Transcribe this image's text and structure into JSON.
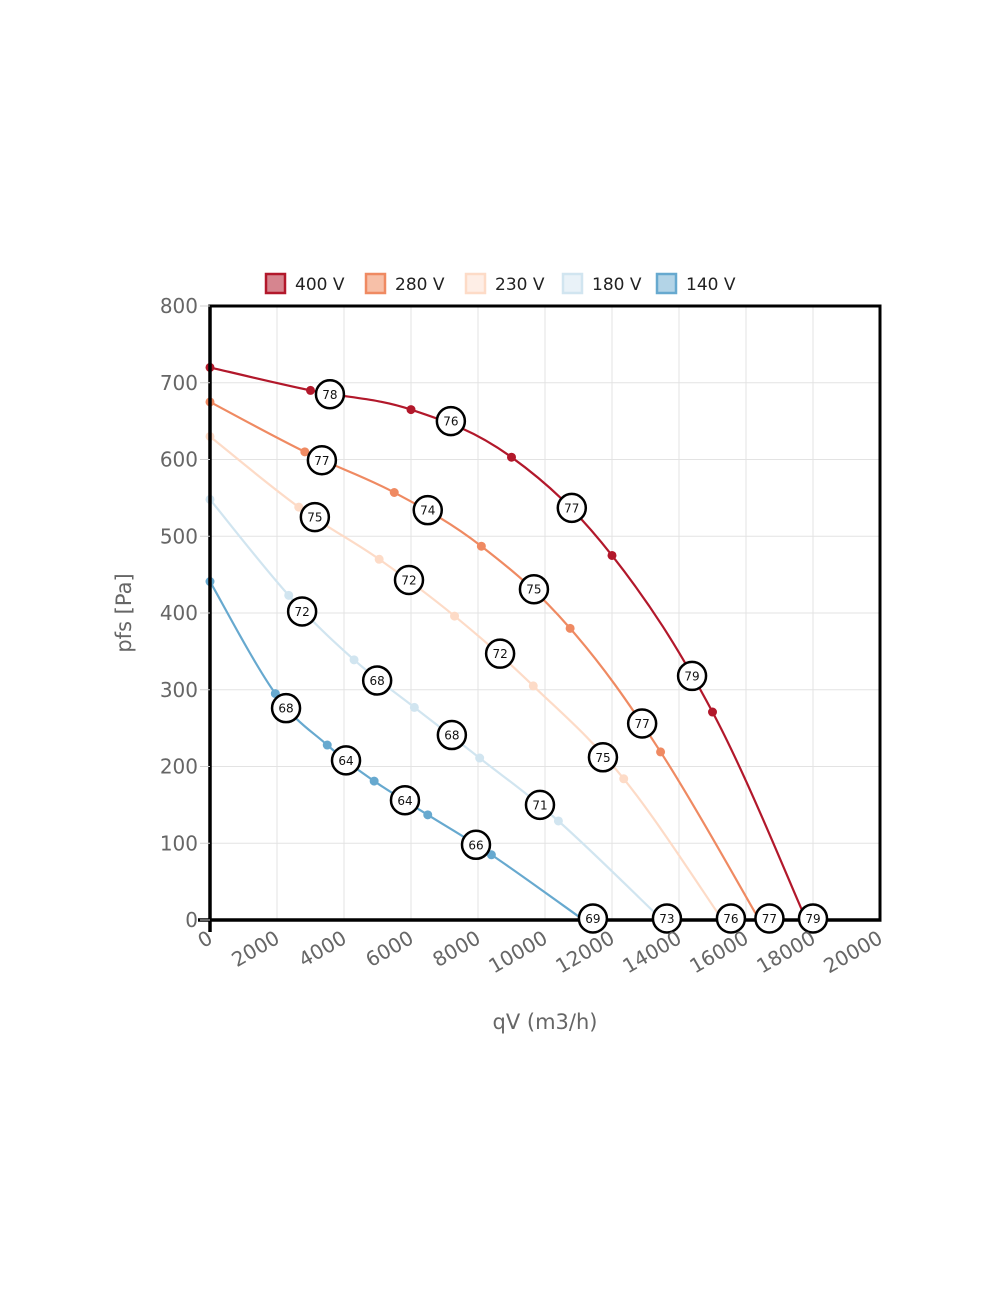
{
  "chart_data": {
    "type": "line",
    "title": "",
    "xlabel": "qV (m3/h)",
    "ylabel": "pfs [Pa]",
    "xlim": [
      0,
      20000
    ],
    "ylim": [
      0,
      800
    ],
    "x_ticks": [
      0,
      2000,
      4000,
      6000,
      8000,
      10000,
      12000,
      14000,
      16000,
      18000,
      20000
    ],
    "y_ticks": [
      0,
      100,
      200,
      300,
      400,
      500,
      600,
      700,
      800
    ],
    "x_tick_labels": [
      "0",
      "2000",
      "4000",
      "6000",
      "8000",
      "10000",
      "12000",
      "14000",
      "16000",
      "18000",
      "20000"
    ],
    "y_tick_labels": [
      "0",
      "100",
      "200",
      "300",
      "400",
      "500",
      "600",
      "700",
      "800"
    ],
    "grid": true,
    "legend_position": "top",
    "series": [
      {
        "name": "400 V",
        "color": "#b2182b",
        "fill": "#d6858f",
        "x": [
          0,
          3000,
          6000,
          9000,
          12000,
          15000,
          17800
        ],
        "y": [
          720,
          690,
          665,
          603,
          475,
          271,
          0
        ],
        "annotations": [
          {
            "x": 3580,
            "y": 685,
            "label": "78"
          },
          {
            "x": 7190,
            "y": 650,
            "label": "76"
          },
          {
            "x": 10800,
            "y": 537,
            "label": "77"
          },
          {
            "x": 14390,
            "y": 318,
            "label": "79"
          },
          {
            "x": 18000,
            "y": 2,
            "label": "79"
          }
        ]
      },
      {
        "name": "280 V",
        "color": "#ef8a62",
        "fill": "#f7c0a8",
        "x": [
          0,
          2830,
          5500,
          8100,
          10750,
          13450,
          16400
        ],
        "y": [
          675,
          610,
          557,
          487,
          380,
          219,
          0
        ],
        "annotations": [
          {
            "x": 3340,
            "y": 599,
            "label": "77"
          },
          {
            "x": 6500,
            "y": 534,
            "label": "74"
          },
          {
            "x": 9670,
            "y": 431,
            "label": "75"
          },
          {
            "x": 12900,
            "y": 256,
            "label": "77"
          },
          {
            "x": 16700,
            "y": 2,
            "label": "77"
          }
        ]
      },
      {
        "name": "230 V",
        "color": "#fddbc7",
        "fill": "#feeee6",
        "x": [
          0,
          2650,
          5050,
          7300,
          9650,
          12350,
          15300
        ],
        "y": [
          630,
          538,
          470,
          396,
          305,
          184,
          0
        ],
        "annotations": [
          {
            "x": 3130,
            "y": 525,
            "label": "75"
          },
          {
            "x": 5940,
            "y": 443,
            "label": "72"
          },
          {
            "x": 8660,
            "y": 347,
            "label": "72"
          },
          {
            "x": 11730,
            "y": 212,
            "label": "75"
          },
          {
            "x": 15550,
            "y": 2,
            "label": "76"
          }
        ]
      },
      {
        "name": "180 V",
        "color": "#d1e5f0",
        "fill": "#e9f2f8",
        "x": [
          0,
          2350,
          4300,
          6100,
          8050,
          10400,
          13500
        ],
        "y": [
          548,
          423,
          339,
          277,
          211,
          129,
          0
        ],
        "annotations": [
          {
            "x": 2750,
            "y": 402,
            "label": "72"
          },
          {
            "x": 4990,
            "y": 312,
            "label": "68"
          },
          {
            "x": 7220,
            "y": 241,
            "label": "68"
          },
          {
            "x": 9850,
            "y": 150,
            "label": "71"
          },
          {
            "x": 13640,
            "y": 2,
            "label": "73"
          }
        ]
      },
      {
        "name": "140 V",
        "color": "#67a9cf",
        "fill": "#b3d4e7",
        "x": [
          0,
          1950,
          3500,
          4900,
          6500,
          8400,
          11150
        ],
        "y": [
          441,
          295,
          228,
          181,
          137,
          85,
          0
        ],
        "annotations": [
          {
            "x": 2270,
            "y": 276,
            "label": "68"
          },
          {
            "x": 4060,
            "y": 208,
            "label": "64"
          },
          {
            "x": 5820,
            "y": 156,
            "label": "64"
          },
          {
            "x": 7940,
            "y": 98,
            "label": "66"
          },
          {
            "x": 11430,
            "y": 2,
            "label": "69"
          }
        ]
      }
    ]
  }
}
